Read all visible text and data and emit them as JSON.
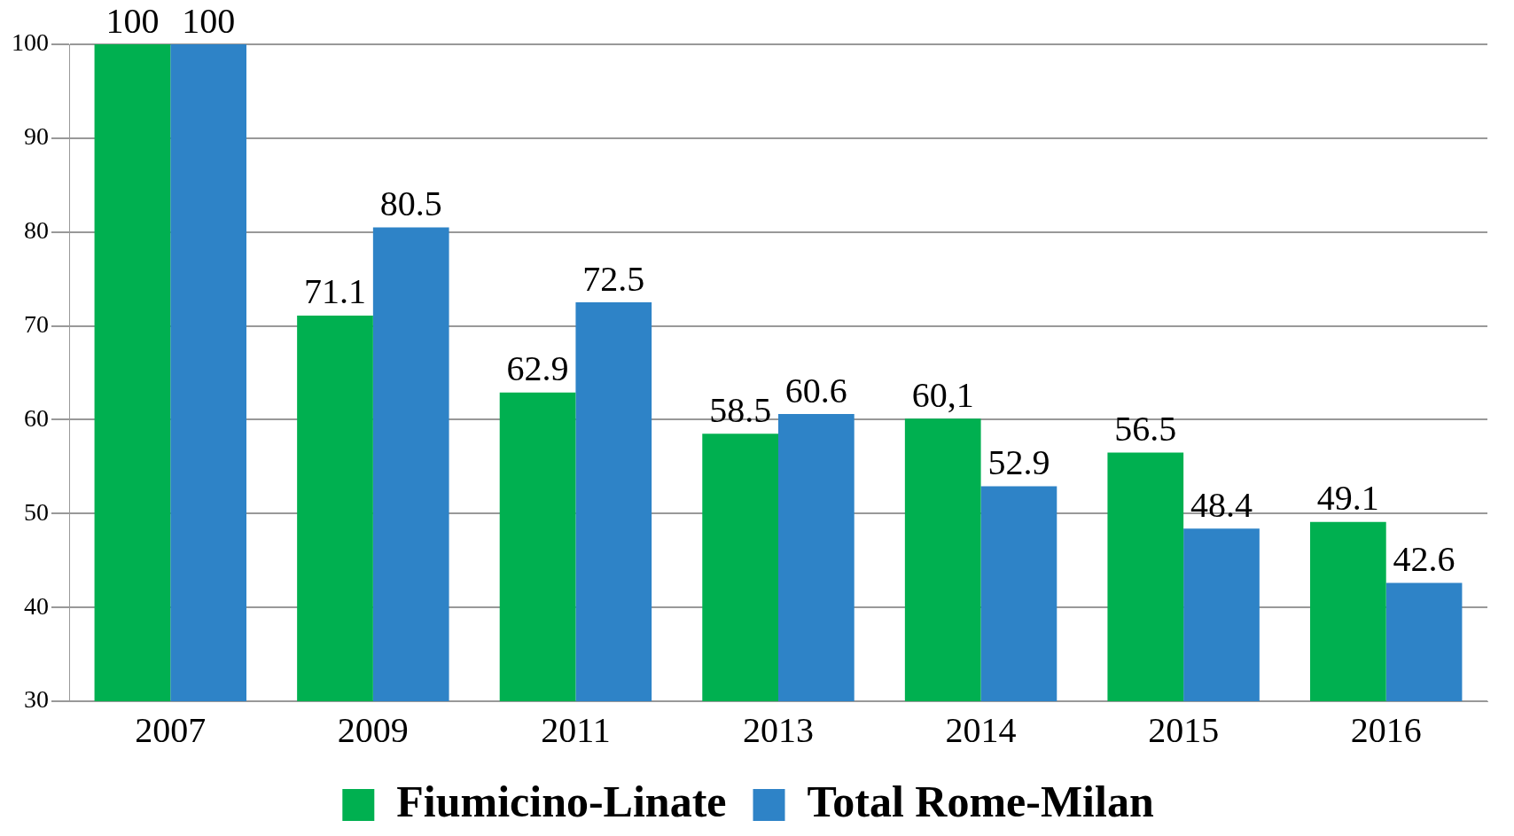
{
  "chart_data": {
    "type": "bar",
    "categories": [
      "2007",
      "2009",
      "2011",
      "2013",
      "2014",
      "2015",
      "2016"
    ],
    "series": [
      {
        "name": "Fiumicino-Linate",
        "color": "#00b050",
        "values": [
          100,
          71.1,
          62.9,
          58.5,
          60.1,
          56.5,
          49.1
        ],
        "value_labels": [
          "100",
          "71.1",
          "62.9",
          "58.5",
          "60,1",
          "56.5",
          "49.1"
        ]
      },
      {
        "name": "Total Rome-Milan",
        "color": "#2e83c7",
        "values": [
          100,
          80.5,
          72.5,
          60.6,
          52.9,
          48.4,
          42.6
        ],
        "value_labels": [
          "100",
          "80.5",
          "72.5",
          "60.6",
          "52.9",
          "48.4",
          "42.6"
        ]
      }
    ],
    "ylim": [
      30,
      100
    ],
    "yticks": [
      30,
      40,
      50,
      60,
      70,
      80,
      90,
      100
    ],
    "grid": "y",
    "legend": "bottom"
  }
}
